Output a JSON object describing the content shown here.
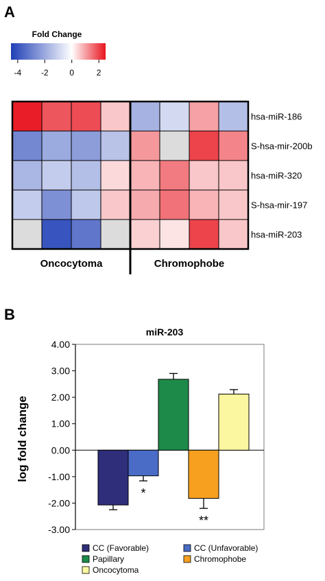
{
  "panel_a": {
    "letter": "A",
    "colorbar": {
      "title": "Fold Change",
      "ticks": [
        "-4",
        "-2",
        "0",
        "2"
      ],
      "min": -4.5,
      "max": 2.5
    },
    "colors": {
      "low": "#1f3fb6",
      "mid": "#ffffff",
      "high": "#e8141e",
      "missing": "#dcdcdc"
    }
  },
  "panel_b": {
    "letter": "B",
    "ytick_labels": [
      "4.00",
      "3.00",
      "2.00",
      "1.00",
      "0.00",
      "-1.00",
      "-2.00",
      "-3.00"
    ],
    "significance": [
      {
        "category": "CC (Unfavorable)",
        "label": "*"
      },
      {
        "category": "Chromophobe",
        "label": "**"
      }
    ]
  },
  "chart_data": [
    {
      "type": "heatmap",
      "title": "",
      "rows": [
        "hsa-miR-186",
        "S-hsa-mir-200b",
        "hsa-miR-320",
        "S-hsa-mir-197",
        "hsa-miR-203"
      ],
      "column_groups": [
        {
          "name": "Oncocytoma",
          "n": 4
        },
        {
          "name": "Chromophobe",
          "n": 4
        }
      ],
      "values": [
        [
          2.4,
          1.8,
          1.9,
          0.6,
          -1.8,
          -0.9,
          1.0,
          -1.5
        ],
        [
          -2.8,
          -2.0,
          -2.3,
          -1.4,
          1.1,
          null,
          2.0,
          1.3
        ],
        [
          -1.7,
          -1.2,
          -1.5,
          0.4,
          0.8,
          1.4,
          0.6,
          0.6
        ],
        [
          -1.2,
          -2.6,
          -1.3,
          0.6,
          0.9,
          1.5,
          0.8,
          0.6
        ],
        [
          null,
          -4.0,
          -3.2,
          null,
          0.5,
          0.3,
          2.0,
          0.6
        ]
      ],
      "color_scale": {
        "min": -4.5,
        "max": 2.5,
        "ticks": [
          -4,
          -2,
          0,
          2
        ]
      }
    },
    {
      "type": "bar",
      "title": "miR-203",
      "xlabel": "",
      "ylabel": "log fold change",
      "ylim": [
        -3,
        4
      ],
      "categories": [
        "CC (Favorable)",
        "CC (Unfavorable)",
        "Papillary",
        "Chromophobe",
        "Oncocytoma"
      ],
      "values": [
        -2.07,
        -0.97,
        2.68,
        -1.82,
        2.12
      ],
      "errors": [
        0.18,
        0.19,
        0.22,
        0.38,
        0.17
      ],
      "colors": [
        "#2e2e7a",
        "#4a6cc6",
        "#1d8a4a",
        "#f7a020",
        "#fbf7a0"
      ],
      "legend": "bottom",
      "grid": false
    }
  ]
}
